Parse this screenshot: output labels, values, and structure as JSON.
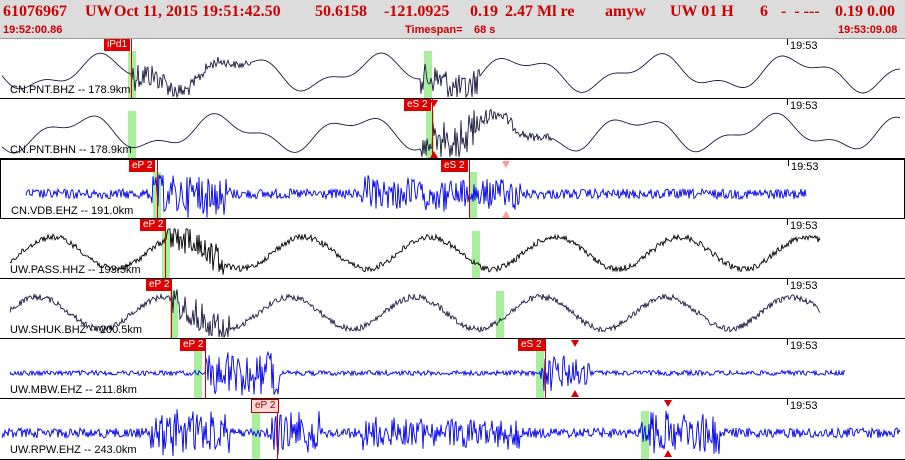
{
  "header": {
    "event_id": "61076967",
    "network": "UW",
    "datetime": "Oct 11, 2015 19:51:42.50",
    "lat": "50.6158",
    "lon": "-121.0925",
    "depth": "0.19",
    "magnitude": "2.47 Ml re",
    "analyst": "amyw",
    "source": "UW 01 H",
    "phases": "6",
    "dashes": "-  - ---",
    "rms_dmin": "0.19 0.00",
    "start_time": "19:52:00.86",
    "timespan_label": "Timespan=",
    "timespan_value": "68 s",
    "end_time": "19:53:09.08"
  },
  "panels": [
    {
      "label": "CN.PNT.BHZ -- 178.9km",
      "time": "19:53",
      "color": "#1a1a40",
      "style": "low",
      "picks": [
        {
          "text": "iPd1",
          "x": 104,
          "line": 131,
          "band": 128
        }
      ],
      "bands": [
        424
      ],
      "markers": []
    },
    {
      "label": "CN.PNT.BHN -- 178.9km",
      "time": "19:53",
      "color": "#1a1a40",
      "style": "low",
      "picks": [
        {
          "text": "eS 2",
          "x": 404,
          "line": 432,
          "band": 426
        }
      ],
      "bands": [
        128
      ],
      "markers": [
        {
          "type": "down",
          "x": 434,
          "top": 1
        },
        {
          "type": "up",
          "x": 434,
          "top": 52
        }
      ]
    },
    {
      "label": "CN.VDB.EHZ -- 191.0km",
      "time": "19:53",
      "color": "#0000ee",
      "style": "high",
      "selected": true,
      "picks": [
        {
          "text": "eP 2",
          "x": 128,
          "line": 156,
          "band": 152
        },
        {
          "text": "eS 2",
          "x": 440,
          "line": 468,
          "band": 468
        }
      ],
      "bands": [],
      "markers": [
        {
          "type": "down",
          "x": 505,
          "top": 1,
          "hollow": true
        },
        {
          "type": "up",
          "x": 505,
          "top": 51,
          "hollow": true
        }
      ]
    },
    {
      "label": "UW.PASS.HHZ -- 193.5km",
      "time": "19:53",
      "color": "#000000",
      "style": "mix",
      "picks": [
        {
          "text": "eP 2",
          "x": 140,
          "line": 165,
          "band": 162
        }
      ],
      "bands": [
        472
      ],
      "markers": []
    },
    {
      "label": "UW.SHUK.BHZ -- 200.5km",
      "time": "19:53",
      "color": "#1a1a40",
      "style": "mix",
      "picks": [
        {
          "text": "eP 2",
          "x": 146,
          "line": 171,
          "band": 170
        }
      ],
      "bands": [
        496
      ],
      "markers": []
    },
    {
      "label": "UW.MBW.EHZ -- 211.8km",
      "time": "19:53",
      "color": "#0000ee",
      "style": "burst",
      "picks": [
        {
          "text": "eP 2",
          "x": 180,
          "line": 205,
          "band": 194
        },
        {
          "text": "eS 2",
          "x": 518,
          "line": 545,
          "band": 536
        }
      ],
      "bands": [],
      "markers": [
        {
          "type": "down",
          "x": 575,
          "top": 1
        },
        {
          "type": "up",
          "x": 575,
          "top": 51
        }
      ]
    },
    {
      "label": "UW.RPW.EHZ -- 243.0km",
      "time": "19:53",
      "color": "#0000ee",
      "style": "high2",
      "picks": [
        {
          "text": "eP 2",
          "x": 251,
          "line": 277,
          "band": 252,
          "hollow": true
        }
      ],
      "bands": [
        641
      ],
      "markers": [
        {
          "type": "down",
          "x": 668,
          "top": 1
        },
        {
          "type": "up",
          "x": 668,
          "top": 51
        }
      ]
    }
  ]
}
